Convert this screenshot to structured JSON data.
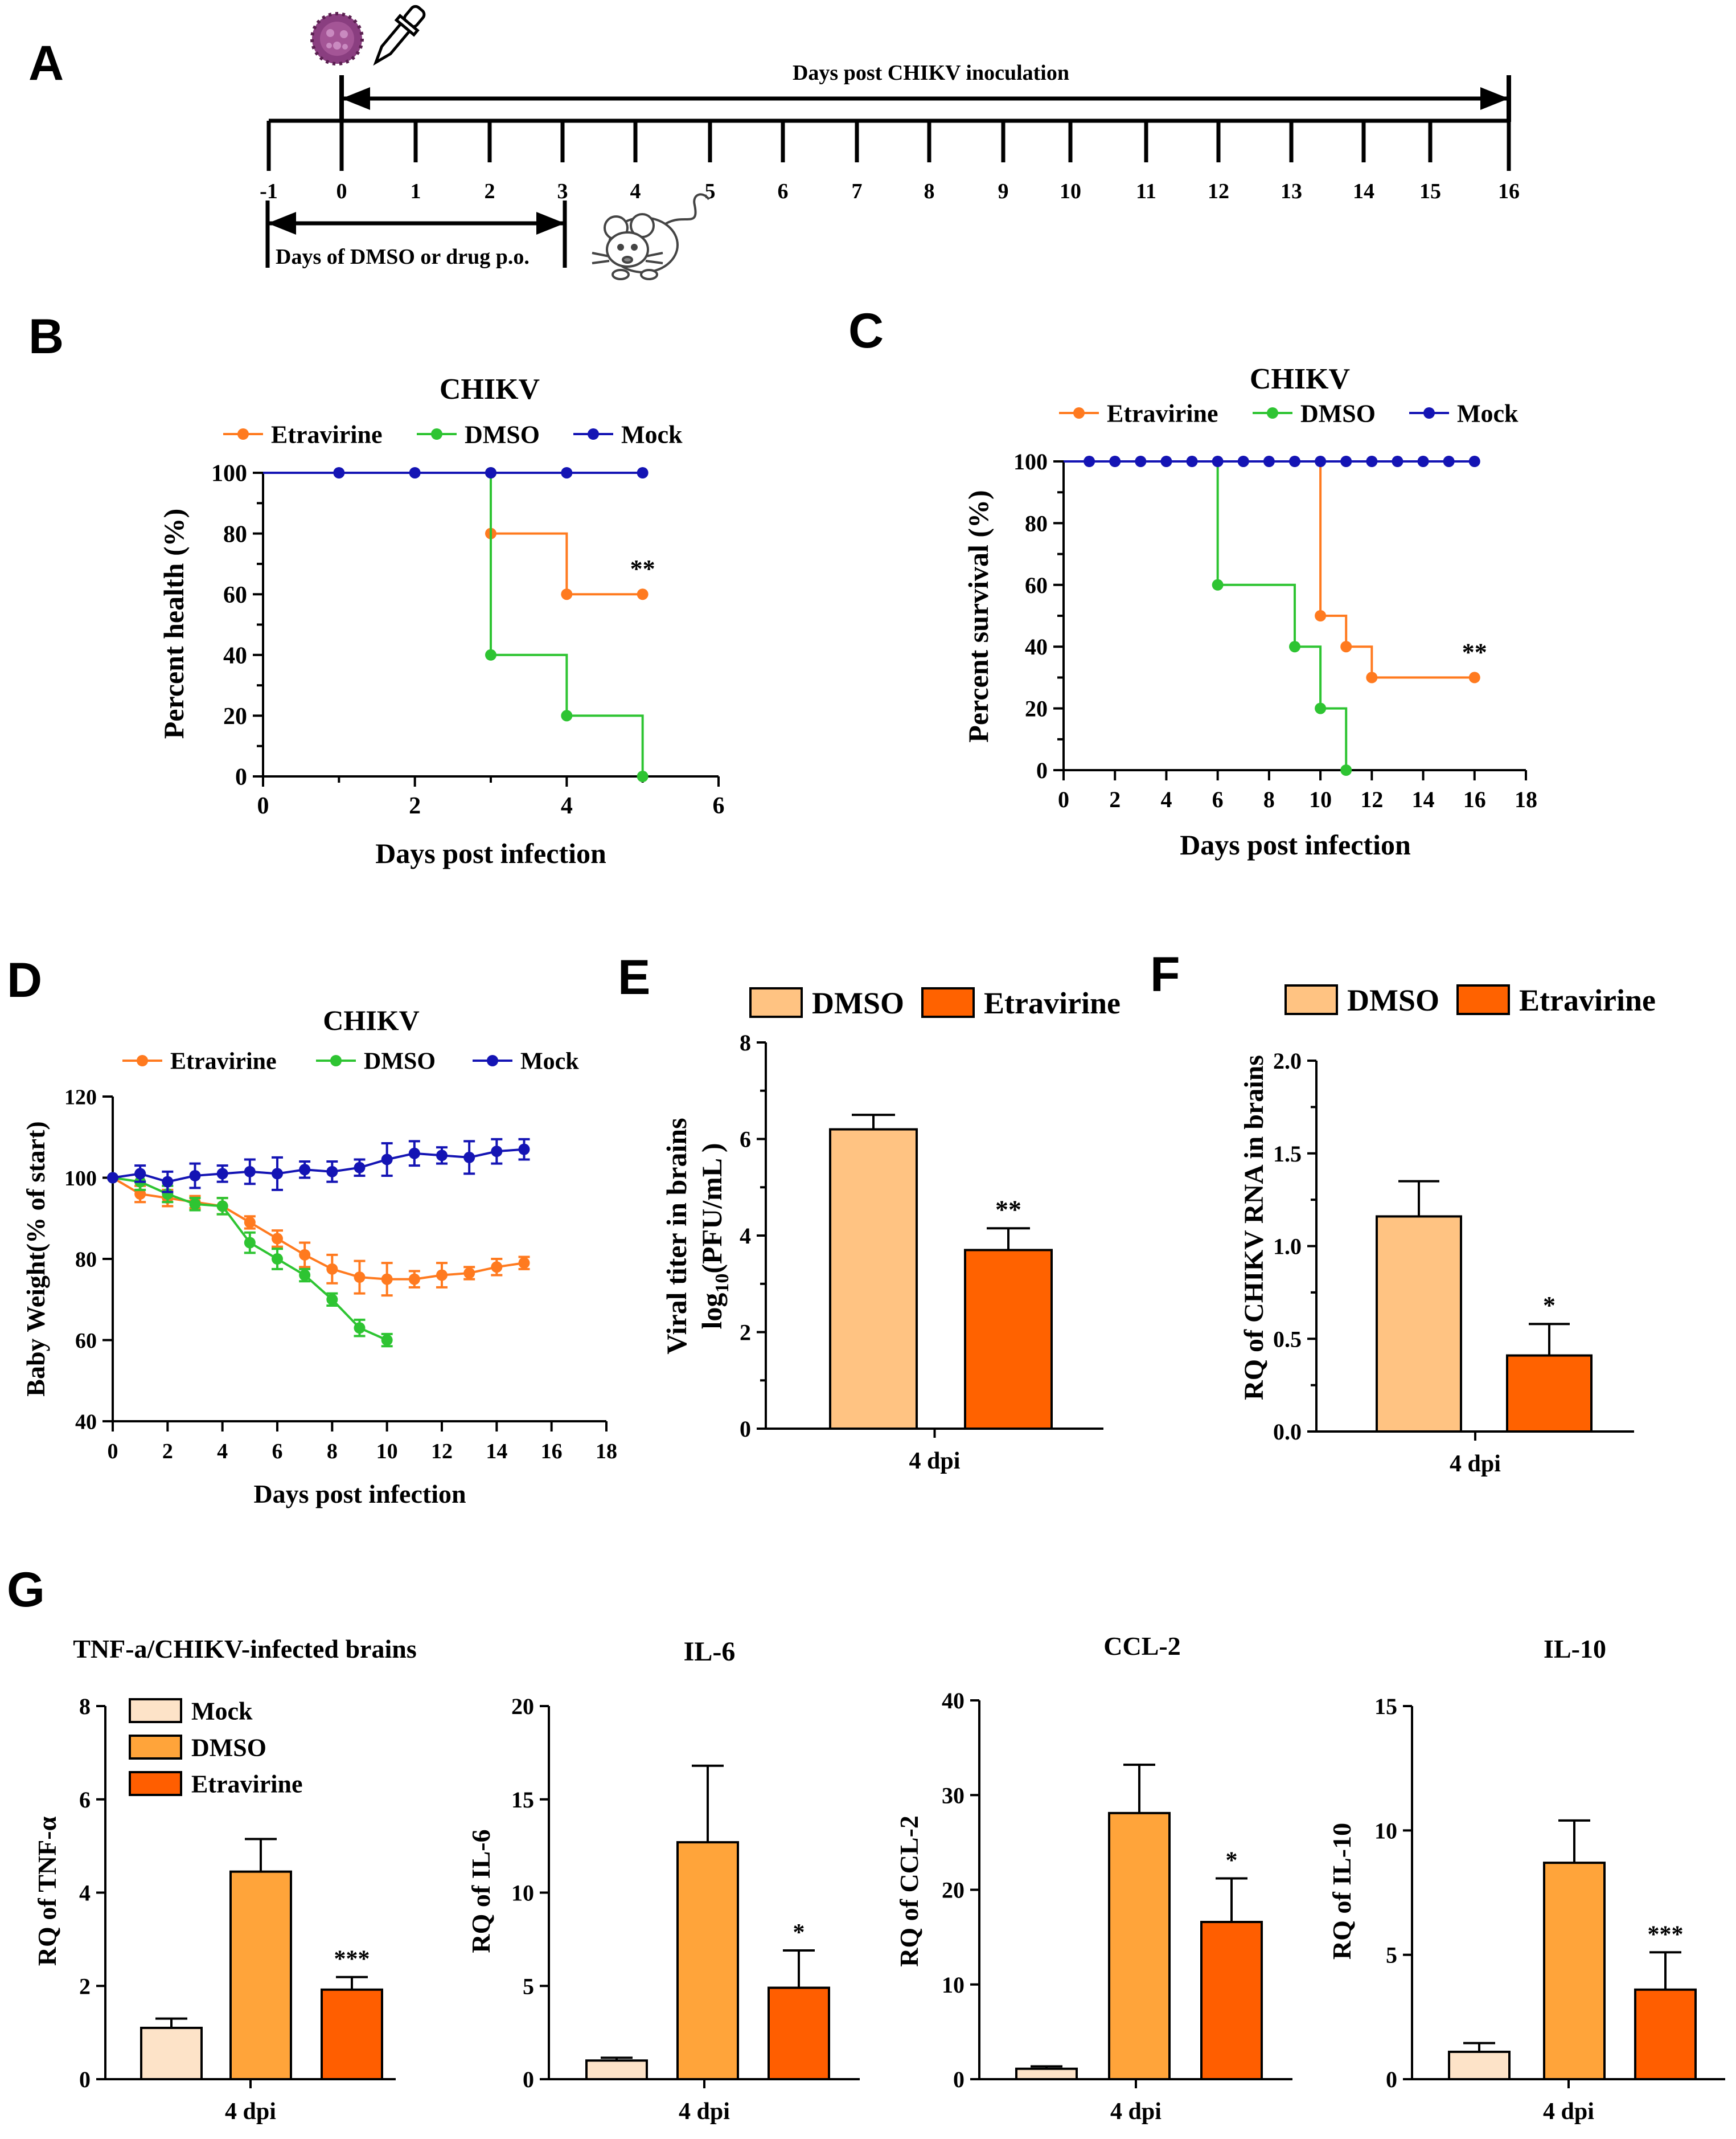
{
  "colors": {
    "etravirine": "#ff7a1f",
    "dmso": "#2ec432",
    "mock": "#1414b4",
    "bar_mock": "#fde3c8",
    "bar_dmso": "#ffa43a",
    "bar_etravirine": "#ff5e00",
    "bar_dmso_ef": "#ffc382",
    "bar_etravirine_ef": "#ff6200"
  },
  "panel_labels": [
    "A",
    "B",
    "C",
    "D",
    "E",
    "F",
    "G"
  ],
  "timeline": {
    "header": "Days post CHIKV inoculation",
    "ticks": [
      "-1",
      "0",
      "1",
      "2",
      "3",
      "4",
      "5",
      "6",
      "7",
      "8",
      "9",
      "10",
      "11",
      "12",
      "13",
      "14",
      "15",
      "16"
    ],
    "drug_label": "Days of DMSO or drug p.o.",
    "icons": [
      "virus-icon",
      "dropper-icon",
      "mouse-icon"
    ]
  },
  "chart_data": [
    {
      "id": "B",
      "type": "line",
      "title": "CHIKV",
      "xlabel": "Days post infection",
      "ylabel": "Percent health (%)",
      "xlim": [
        0,
        6
      ],
      "ylim": [
        0,
        100
      ],
      "xticks": [
        "0",
        "2",
        "4",
        "6"
      ],
      "yticks": [
        "0",
        "20",
        "40",
        "60",
        "80",
        "100"
      ],
      "legend": [
        "Etravirine",
        "DMSO",
        "Mock"
      ],
      "series": [
        {
          "name": "Etravirine",
          "color_key": "etravirine",
          "step": true,
          "x": [
            3,
            3,
            4,
            5
          ],
          "y": [
            100,
            80,
            60,
            60
          ]
        },
        {
          "name": "DMSO",
          "color_key": "dmso",
          "step": true,
          "x": [
            3,
            3,
            4,
            5
          ],
          "y": [
            100,
            40,
            20,
            0
          ]
        },
        {
          "name": "Mock",
          "color_key": "mock",
          "step": true,
          "x": [
            1,
            2,
            3,
            4,
            5
          ],
          "y": [
            100,
            100,
            100,
            100,
            100
          ]
        }
      ],
      "annotation": {
        "text": "**",
        "x": 5,
        "y": 60
      }
    },
    {
      "id": "C",
      "type": "line",
      "title": "CHIKV",
      "xlabel": "Days post infection",
      "ylabel": "Percent survival (%)",
      "xlim": [
        0,
        18
      ],
      "ylim": [
        0,
        100
      ],
      "xticks": [
        "0",
        "2",
        "4",
        "6",
        "8",
        "10",
        "12",
        "14",
        "16",
        "18"
      ],
      "yticks": [
        "0",
        "20",
        "40",
        "60",
        "80",
        "100"
      ],
      "legend": [
        "Etravirine",
        "DMSO",
        "Mock"
      ],
      "series": [
        {
          "name": "Etravirine",
          "color_key": "etravirine",
          "step": true,
          "x": [
            10,
            11,
            12,
            16
          ],
          "y": [
            50,
            40,
            30,
            30
          ]
        },
        {
          "name": "DMSO",
          "color_key": "dmso",
          "step": true,
          "x": [
            6,
            9,
            10,
            11
          ],
          "y": [
            60,
            40,
            20,
            0
          ]
        },
        {
          "name": "Mock",
          "color_key": "mock",
          "step": true,
          "x": [
            1,
            2,
            3,
            4,
            5,
            6,
            7,
            8,
            9,
            10,
            11,
            12,
            13,
            14,
            15,
            16
          ],
          "y": [
            100,
            100,
            100,
            100,
            100,
            100,
            100,
            100,
            100,
            100,
            100,
            100,
            100,
            100,
            100,
            100
          ]
        }
      ],
      "annotation": {
        "text": "**",
        "x": 16,
        "y": 30
      }
    },
    {
      "id": "D",
      "type": "line",
      "title": "CHIKV",
      "xlabel": "Days post infection",
      "ylabel": "Baby Weight(% of start)",
      "xlim": [
        0,
        18
      ],
      "ylim": [
        40,
        120
      ],
      "xticks": [
        "0",
        "2",
        "4",
        "6",
        "8",
        "10",
        "12",
        "14",
        "16",
        "18"
      ],
      "yticks": [
        "40",
        "60",
        "80",
        "100",
        "120"
      ],
      "legend": [
        "Etravirine",
        "DMSO",
        "Mock"
      ],
      "series": [
        {
          "name": "Etravirine",
          "color_key": "etravirine",
          "x": [
            0,
            1,
            2,
            3,
            4,
            5,
            6,
            7,
            8,
            9,
            10,
            11,
            12,
            13,
            14,
            15
          ],
          "y": [
            100,
            96,
            95,
            94,
            93,
            89,
            85,
            81,
            77.5,
            75.5,
            75,
            75,
            76,
            76.5,
            78,
            79
          ],
          "err": [
            0,
            2,
            2,
            1.5,
            2,
            1.5,
            2,
            3,
            3.5,
            4,
            4,
            2,
            3,
            1.5,
            2,
            1.5
          ]
        },
        {
          "name": "DMSO",
          "color_key": "dmso",
          "x": [
            0,
            1,
            2,
            3,
            4,
            5,
            6,
            7,
            8,
            9,
            10
          ],
          "y": [
            100,
            99,
            96,
            93.5,
            93,
            84,
            80,
            76,
            70,
            63,
            60
          ],
          "err": [
            0,
            2,
            2,
            1.5,
            2,
            2.5,
            2.5,
            1.5,
            1.5,
            2,
            1.5
          ]
        },
        {
          "name": "Mock",
          "color_key": "mock",
          "x": [
            0,
            1,
            2,
            3,
            4,
            5,
            6,
            7,
            8,
            9,
            10,
            11,
            12,
            13,
            14,
            15
          ],
          "y": [
            100,
            101,
            99,
            100.5,
            101,
            101.5,
            101,
            102,
            101.5,
            102.5,
            104.5,
            106,
            105.5,
            105,
            106.5,
            107
          ],
          "err": [
            0,
            2,
            2.5,
            3,
            2,
            3,
            4,
            2,
            2.5,
            2,
            4,
            3,
            2,
            4,
            3,
            2.5
          ]
        }
      ]
    },
    {
      "id": "E",
      "type": "bar",
      "categories": [
        "4 dpi"
      ],
      "ylabel_line1": "Viral titer in brains",
      "ylabel_line2": "log10(PFU/mL )",
      "ylim": [
        0,
        8
      ],
      "yticks": [
        "0",
        "2",
        "4",
        "6",
        "8"
      ],
      "legend": [
        "DMSO",
        "Etravirine"
      ],
      "series": [
        {
          "name": "DMSO",
          "color_key": "bar_dmso_ef",
          "values": [
            6.2
          ],
          "err": [
            0.3
          ]
        },
        {
          "name": "Etravirine",
          "color_key": "bar_etravirine_ef",
          "values": [
            3.7
          ],
          "err": [
            0.45
          ],
          "sig": "**"
        }
      ]
    },
    {
      "id": "F",
      "type": "bar",
      "categories": [
        "4 dpi"
      ],
      "ylabel": "RQ of CHIKV RNA in brains",
      "ylim": [
        0,
        2.0
      ],
      "yticks": [
        "0.0",
        "0.5",
        "1.0",
        "1.5",
        "2.0"
      ],
      "legend": [
        "DMSO",
        "Etravirine"
      ],
      "series": [
        {
          "name": "DMSO",
          "color_key": "bar_dmso_ef",
          "values": [
            1.16
          ],
          "err": [
            0.19
          ]
        },
        {
          "name": "Etravirine",
          "color_key": "bar_etravirine_ef",
          "values": [
            0.41
          ],
          "err": [
            0.17
          ],
          "sig": "*"
        }
      ]
    },
    {
      "id": "G1",
      "type": "bar",
      "title": "TNF-a/CHIKV-infected brains",
      "categories": [
        "4 dpi"
      ],
      "ylabel": "RQ of TNF-α",
      "ylim": [
        0,
        8
      ],
      "yticks": [
        "0",
        "2",
        "4",
        "6",
        "8"
      ],
      "legend": [
        "Mock",
        "DMSO",
        "Etravirine"
      ],
      "series": [
        {
          "name": "Mock",
          "color_key": "bar_mock",
          "values": [
            1.1
          ],
          "err": [
            0.2
          ]
        },
        {
          "name": "DMSO",
          "color_key": "bar_dmso",
          "values": [
            4.45
          ],
          "err": [
            0.7
          ]
        },
        {
          "name": "Etravirine",
          "color_key": "bar_etravirine",
          "values": [
            1.92
          ],
          "err": [
            0.27
          ],
          "sig": "***"
        }
      ]
    },
    {
      "id": "G2",
      "type": "bar",
      "title": "IL-6",
      "categories": [
        "4 dpi"
      ],
      "ylabel": "RQ of IL-6",
      "ylim": [
        0,
        20
      ],
      "yticks": [
        "0",
        "5",
        "10",
        "15",
        "20"
      ],
      "series": [
        {
          "name": "Mock",
          "color_key": "bar_mock",
          "values": [
            1.0
          ],
          "err": [
            0.15
          ]
        },
        {
          "name": "DMSO",
          "color_key": "bar_dmso",
          "values": [
            12.7
          ],
          "err": [
            4.1
          ]
        },
        {
          "name": "Etravirine",
          "color_key": "bar_etravirine",
          "values": [
            4.9
          ],
          "err": [
            2.0
          ],
          "sig": "*"
        }
      ]
    },
    {
      "id": "G3",
      "type": "bar",
      "title": "CCL-2",
      "categories": [
        "4 dpi"
      ],
      "ylabel": "RQ of CCL-2",
      "ylim": [
        0,
        40
      ],
      "yticks": [
        "0",
        "10",
        "20",
        "30",
        "40"
      ],
      "series": [
        {
          "name": "Mock",
          "color_key": "bar_mock",
          "values": [
            1.1
          ],
          "err": [
            0.25
          ]
        },
        {
          "name": "DMSO",
          "color_key": "bar_dmso",
          "values": [
            28.1
          ],
          "err": [
            5.1
          ]
        },
        {
          "name": "Etravirine",
          "color_key": "bar_etravirine",
          "values": [
            16.6
          ],
          "err": [
            4.6
          ],
          "sig": "*"
        }
      ]
    },
    {
      "id": "G4",
      "type": "bar",
      "title": "IL-10",
      "categories": [
        "4 dpi"
      ],
      "ylabel": "RQ of IL-10",
      "ylim": [
        0,
        15
      ],
      "yticks": [
        "0",
        "5",
        "10",
        "15"
      ],
      "series": [
        {
          "name": "Mock",
          "color_key": "bar_mock",
          "values": [
            1.1
          ],
          "err": [
            0.35
          ]
        },
        {
          "name": "DMSO",
          "color_key": "bar_dmso",
          "values": [
            8.7
          ],
          "err": [
            1.7
          ]
        },
        {
          "name": "Etravirine",
          "color_key": "bar_etravirine",
          "values": [
            3.6
          ],
          "err": [
            1.5
          ],
          "sig": "***"
        }
      ]
    }
  ]
}
